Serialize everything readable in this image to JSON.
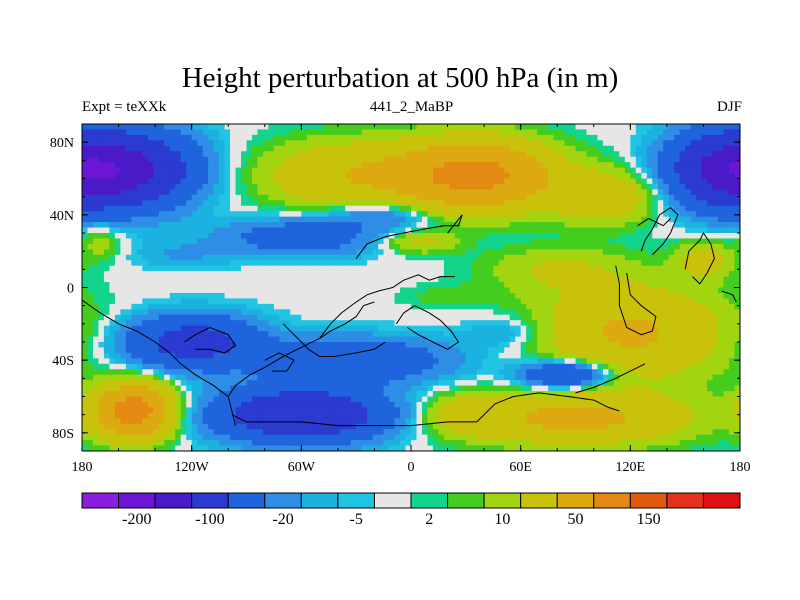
{
  "chart_data": {
    "type": "heatmap",
    "title": "Height perturbation at 500 hPa (in m)",
    "left_string": "Expt = teXXk",
    "center_string": "441_2_MaBP",
    "right_string": "DJF",
    "x_range": [
      -180,
      180
    ],
    "y_range": [
      -90,
      90
    ],
    "x_ticks": [
      {
        "value": -180,
        "label": "180"
      },
      {
        "value": -120,
        "label": "120W"
      },
      {
        "value": -60,
        "label": "60W"
      },
      {
        "value": 0,
        "label": "0"
      },
      {
        "value": 60,
        "label": "60E"
      },
      {
        "value": 120,
        "label": "120E"
      },
      {
        "value": 180,
        "label": "180"
      }
    ],
    "y_ticks": [
      {
        "value": 80,
        "label": "80N"
      },
      {
        "value": 40,
        "label": "40N"
      },
      {
        "value": 0,
        "label": "0"
      },
      {
        "value": -40,
        "label": "40S"
      },
      {
        "value": -80,
        "label": "80S"
      }
    ],
    "colorbar": {
      "colors": [
        "#8a1ee0",
        "#6a16d4",
        "#4a1ac8",
        "#2b3ad0",
        "#1f64dc",
        "#2e8ee6",
        "#1bb2e0",
        "#22c4e4",
        "#e6e6e6",
        "#12d48a",
        "#44cc1e",
        "#a2d410",
        "#c8c20a",
        "#dcaa10",
        "#e48a14",
        "#e25a10",
        "#e4301c",
        "#e01010"
      ],
      "labels": [
        {
          "boundary": 1.5,
          "text": "-200"
        },
        {
          "boundary": 3.5,
          "text": "-100"
        },
        {
          "boundary": 5.5,
          "text": "-20"
        },
        {
          "boundary": 7.5,
          "text": "-5"
        },
        {
          "boundary": 9.5,
          "text": "2"
        },
        {
          "boundary": 11.5,
          "text": "10"
        },
        {
          "boundary": 13.5,
          "text": "50"
        },
        {
          "boundary": 15.5,
          "text": "150"
        }
      ]
    },
    "blobs": [
      {
        "lon": -155,
        "lat": 65,
        "rlon": 35,
        "rlat": 20,
        "amp": -110
      },
      {
        "lon": 172,
        "lat": 65,
        "rlon": 30,
        "rlat": 20,
        "amp": -100
      },
      {
        "lon": -60,
        "lat": 28,
        "rlon": 42,
        "rlat": 10,
        "amp": -35
      },
      {
        "lon": -15,
        "lat": 40,
        "rlon": 30,
        "rlat": 8,
        "amp": -25
      },
      {
        "lon": -125,
        "lat": 18,
        "rlon": 28,
        "rlat": 8,
        "amp": -10
      },
      {
        "lon": -170,
        "lat": 25,
        "rlon": 12,
        "rlat": 10,
        "amp": 15
      },
      {
        "lon": 35,
        "lat": 62,
        "rlon": 40,
        "rlat": 18,
        "amp": 120
      },
      {
        "lon": -35,
        "lat": 62,
        "rlon": 45,
        "rlat": 18,
        "amp": 45
      },
      {
        "lon": 105,
        "lat": 50,
        "rlon": 28,
        "rlat": 14,
        "amp": 40
      },
      {
        "lon": 5,
        "lat": 25,
        "rlon": 20,
        "rlat": 6,
        "amp": 25
      },
      {
        "lon": -120,
        "lat": -30,
        "rlon": 35,
        "rlat": 14,
        "amp": -70
      },
      {
        "lon": -60,
        "lat": -70,
        "rlon": 45,
        "rlat": 14,
        "amp": -100
      },
      {
        "lon": -30,
        "lat": -40,
        "rlon": 50,
        "rlat": 12,
        "amp": -45
      },
      {
        "lon": 85,
        "lat": -48,
        "rlon": 25,
        "rlat": 8,
        "amp": -60
      },
      {
        "lon": 55,
        "lat": -25,
        "rlon": 25,
        "rlat": 10,
        "amp": -15
      },
      {
        "lon": -152,
        "lat": -68,
        "rlon": 20,
        "rlat": 14,
        "amp": 130
      },
      {
        "lon": 120,
        "lat": -25,
        "rlon": 50,
        "rlat": 25,
        "amp": 55
      },
      {
        "lon": 90,
        "lat": -72,
        "rlon": 60,
        "rlat": 14,
        "amp": 60
      },
      {
        "lon": 30,
        "lat": -70,
        "rlon": 20,
        "rlat": 10,
        "amp": 25
      },
      {
        "lon": 80,
        "lat": 10,
        "rlon": 40,
        "rlat": 12,
        "amp": 20
      },
      {
        "lon": 20,
        "lat": -5,
        "rlon": 25,
        "rlat": 6,
        "amp": 8
      },
      {
        "lon": 160,
        "lat": 15,
        "rlon": 15,
        "rlat": 10,
        "amp": 30
      }
    ],
    "coast": [
      [
        [
          -180,
          -7
        ],
        [
          -170,
          -14
        ],
        [
          -160,
          -20
        ],
        [
          -150,
          -24
        ],
        [
          -140,
          -30
        ],
        [
          -132,
          -36
        ],
        [
          -126,
          -42
        ],
        [
          -118,
          -48
        ],
        [
          -108,
          -54
        ],
        [
          -100,
          -60
        ],
        [
          -98,
          -68
        ],
        [
          -96,
          -76
        ]
      ],
      [
        [
          -100,
          -60
        ],
        [
          -96,
          -54
        ],
        [
          -88,
          -48
        ],
        [
          -80,
          -44
        ],
        [
          -70,
          -38
        ],
        [
          -58,
          -32
        ],
        [
          -50,
          -28
        ],
        [
          -44,
          -20
        ],
        [
          -38,
          -14
        ],
        [
          -30,
          -8
        ],
        [
          -24,
          -4
        ],
        [
          -18,
          -2
        ],
        [
          -10,
          0
        ],
        [
          -4,
          4
        ],
        [
          4,
          7
        ],
        [
          10,
          4
        ],
        [
          16,
          6
        ],
        [
          24,
          6
        ]
      ],
      [
        [
          -70,
          -20
        ],
        [
          -62,
          -28
        ],
        [
          -56,
          -34
        ],
        [
          -50,
          -38
        ],
        [
          -42,
          -38
        ],
        [
          -30,
          -36
        ],
        [
          -20,
          -34
        ],
        [
          -14,
          -30
        ]
      ],
      [
        [
          -50,
          -28
        ],
        [
          -44,
          -24
        ],
        [
          -36,
          -20
        ],
        [
          -30,
          -16
        ],
        [
          -26,
          -10
        ],
        [
          -20,
          -8
        ]
      ],
      [
        [
          -8,
          -20
        ],
        [
          -4,
          -14
        ],
        [
          2,
          -10
        ],
        [
          10,
          -14
        ],
        [
          16,
          -18
        ],
        [
          22,
          -24
        ],
        [
          26,
          -30
        ],
        [
          20,
          -34
        ],
        [
          12,
          -30
        ],
        [
          4,
          -26
        ],
        [
          -2,
          -22
        ]
      ],
      [
        [
          -30,
          16
        ],
        [
          -24,
          24
        ],
        [
          -14,
          28
        ],
        [
          -4,
          30
        ],
        [
          6,
          32
        ],
        [
          18,
          34
        ],
        [
          26,
          34
        ],
        [
          28,
          40
        ],
        [
          20,
          30
        ]
      ],
      [
        [
          -98,
          -70
        ],
        [
          -90,
          -74
        ],
        [
          -78,
          -74
        ],
        [
          -60,
          -74
        ],
        [
          -40,
          -76
        ],
        [
          -20,
          -76
        ],
        [
          0,
          -76
        ],
        [
          20,
          -74
        ],
        [
          36,
          -74
        ],
        [
          46,
          -64
        ],
        [
          56,
          -60
        ],
        [
          70,
          -58
        ],
        [
          86,
          -60
        ],
        [
          100,
          -62
        ],
        [
          108,
          -66
        ],
        [
          114,
          -68
        ]
      ],
      [
        [
          90,
          -58
        ],
        [
          100,
          -55
        ],
        [
          112,
          -50
        ],
        [
          120,
          -46
        ],
        [
          128,
          -42
        ]
      ],
      [
        [
          112,
          12
        ],
        [
          114,
          2
        ],
        [
          114,
          -10
        ],
        [
          118,
          -22
        ],
        [
          126,
          -26
        ],
        [
          132,
          -24
        ],
        [
          134,
          -16
        ],
        [
          126,
          -10
        ],
        [
          120,
          -4
        ],
        [
          118,
          8
        ]
      ],
      [
        [
          126,
          20
        ],
        [
          128,
          26
        ],
        [
          132,
          32
        ],
        [
          136,
          40
        ],
        [
          142,
          44
        ],
        [
          146,
          40
        ],
        [
          142,
          30
        ],
        [
          138,
          24
        ],
        [
          132,
          18
        ]
      ],
      [
        [
          124,
          34
        ],
        [
          130,
          38
        ],
        [
          138,
          34
        ],
        [
          142,
          38
        ]
      ],
      [
        [
          150,
          10
        ],
        [
          152,
          20
        ],
        [
          158,
          26
        ],
        [
          160,
          30
        ],
        [
          164,
          24
        ],
        [
          166,
          16
        ],
        [
          162,
          8
        ],
        [
          158,
          2
        ],
        [
          154,
          6
        ]
      ],
      [
        [
          170,
          -2
        ],
        [
          176,
          -4
        ],
        [
          178,
          -8
        ]
      ],
      [
        [
          -124,
          -30
        ],
        [
          -118,
          -26
        ],
        [
          -110,
          -22
        ],
        [
          -100,
          -26
        ],
        [
          -96,
          -32
        ],
        [
          -102,
          -36
        ],
        [
          -110,
          -34
        ],
        [
          -118,
          -34
        ]
      ],
      [
        [
          -80,
          -40
        ],
        [
          -72,
          -36
        ],
        [
          -64,
          -40
        ],
        [
          -68,
          -46
        ],
        [
          -76,
          -46
        ]
      ]
    ]
  }
}
